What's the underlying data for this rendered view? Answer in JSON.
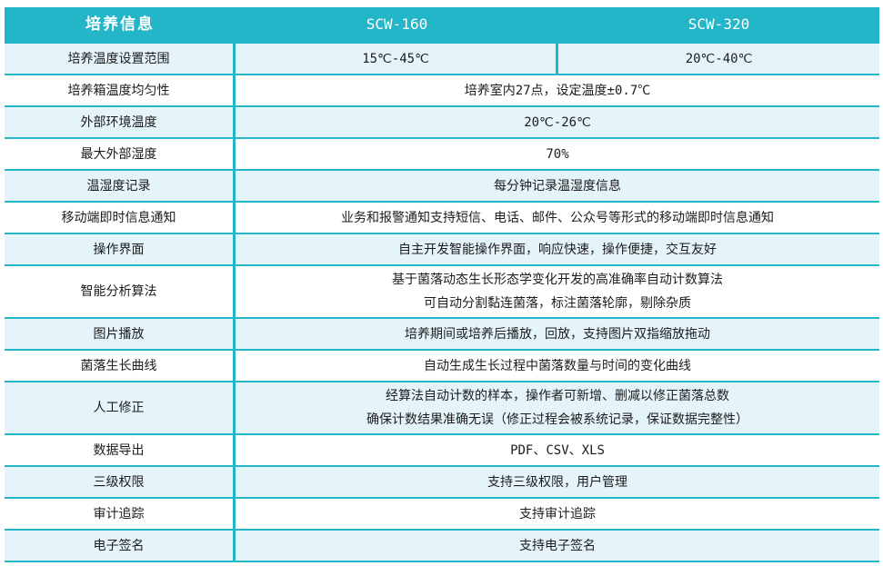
{
  "header": {
    "info": "培养信息",
    "scw160": "SCW-160",
    "scw320": "SCW-320"
  },
  "rows": [
    {
      "label": "培养温度设置范围",
      "scw160": "15℃-45℃",
      "scw320": "20℃-40℃"
    },
    {
      "label": "培养箱温度均匀性",
      "value": "培养室内27点，设定温度±0.7℃"
    },
    {
      "label": "外部环境温度",
      "value": "20℃-26℃"
    },
    {
      "label": "最大外部湿度",
      "value": "70%"
    },
    {
      "label": "温湿度记录",
      "value": "每分钟记录温湿度信息"
    },
    {
      "label": "移动端即时信息通知",
      "value": "业务和报警通知支持短信、电话、邮件、公众号等形式的移动端即时信息通知"
    },
    {
      "label": "操作界面",
      "value": "自主开发智能操作界面，响应快速，操作便捷，交互友好"
    },
    {
      "label": "智能分析算法",
      "value": "基于菌落动态生长形态学变化开发的高准确率自动计数算法\n可自动分割黏连菌落，标注菌落轮廓，剔除杂质"
    },
    {
      "label": "图片播放",
      "value": "培养期间或培养后播放，回放，支持图片双指缩放拖动"
    },
    {
      "label": "菌落生长曲线",
      "value": "自动生成生长过程中菌落数量与时间的变化曲线"
    },
    {
      "label": "人工修正",
      "value": "经算法自动计数的样本，操作者可新增、删减以修正菌落总数\n确保计数结果准确无误（修正过程会被系统记录，保证数据完整性）"
    },
    {
      "label": "数据导出",
      "value": "PDF、CSV、XLS"
    },
    {
      "label": "三级权限",
      "value": "支持三级权限，用户管理"
    },
    {
      "label": "审计追踪",
      "value": "支持审计追踪"
    },
    {
      "label": "电子签名",
      "value": "支持电子签名"
    }
  ],
  "colors": {
    "teal": "#23b5c8",
    "light_row": "#e4f4fa",
    "white_row": "#ffffff",
    "header_text": "#ffffff",
    "body_text": "#1c1c1c"
  }
}
